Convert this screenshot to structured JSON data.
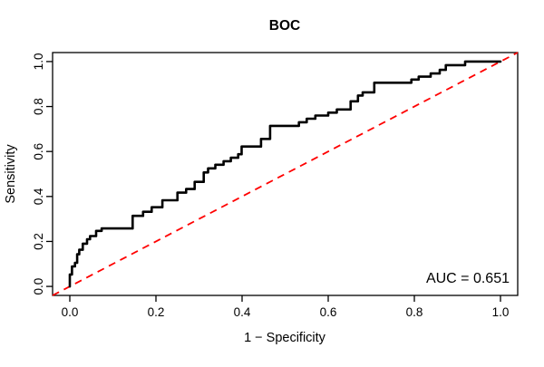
{
  "chart_data": {
    "type": "line",
    "title": "BOC",
    "xlabel": "1 − Specificity",
    "ylabel": "Sensitivity",
    "annotation": "AUC = 0.651",
    "auc_value": 0.651,
    "xlim": [
      -0.04,
      1.04
    ],
    "ylim": [
      -0.04,
      1.04
    ],
    "x_ticks": [
      0.0,
      0.2,
      0.4,
      0.6,
      0.8,
      1.0
    ],
    "y_ticks": [
      0.0,
      0.2,
      0.4,
      0.6,
      0.8,
      1.0
    ],
    "grid": false,
    "legend": "none",
    "colors": {
      "roc_curve": "#000000",
      "reference_line": "#ff0000",
      "box": "#000000"
    },
    "series": [
      {
        "name": "roc-curve",
        "style": "solid-step",
        "x": [
          0,
          0,
          0.005,
          0.005,
          0.012,
          0.012,
          0.017,
          0.017,
          0.022,
          0.022,
          0.03,
          0.03,
          0.04,
          0.04,
          0.047,
          0.047,
          0.061,
          0.061,
          0.074,
          0.074,
          0.146,
          0.146,
          0.17,
          0.17,
          0.19,
          0.19,
          0.215,
          0.215,
          0.25,
          0.25,
          0.27,
          0.27,
          0.29,
          0.29,
          0.311,
          0.311,
          0.321,
          0.321,
          0.338,
          0.338,
          0.357,
          0.357,
          0.374,
          0.374,
          0.391,
          0.391,
          0.399,
          0.399,
          0.444,
          0.444,
          0.465,
          0.465,
          0.532,
          0.532,
          0.55,
          0.55,
          0.57,
          0.57,
          0.6,
          0.6,
          0.62,
          0.62,
          0.652,
          0.652,
          0.669,
          0.669,
          0.68,
          0.68,
          0.707,
          0.707,
          0.793,
          0.793,
          0.81,
          0.81,
          0.838,
          0.838,
          0.859,
          0.859,
          0.873,
          0.873,
          0.918,
          0.918,
          1.0
        ],
        "y": [
          0,
          0.053,
          0.053,
          0.089,
          0.089,
          0.105,
          0.105,
          0.143,
          0.143,
          0.163,
          0.163,
          0.19,
          0.19,
          0.21,
          0.21,
          0.224,
          0.224,
          0.247,
          0.247,
          0.258,
          0.258,
          0.314,
          0.314,
          0.332,
          0.332,
          0.352,
          0.352,
          0.383,
          0.383,
          0.417,
          0.417,
          0.433,
          0.433,
          0.465,
          0.465,
          0.507,
          0.507,
          0.525,
          0.525,
          0.541,
          0.541,
          0.557,
          0.557,
          0.572,
          0.572,
          0.588,
          0.588,
          0.622,
          0.622,
          0.656,
          0.656,
          0.714,
          0.714,
          0.73,
          0.73,
          0.746,
          0.746,
          0.76,
          0.76,
          0.773,
          0.773,
          0.787,
          0.787,
          0.823,
          0.823,
          0.849,
          0.849,
          0.863,
          0.863,
          0.906,
          0.906,
          0.92,
          0.92,
          0.933,
          0.933,
          0.947,
          0.947,
          0.963,
          0.963,
          0.984,
          0.984,
          1.0,
          1.0
        ]
      },
      {
        "name": "chance-diagonal",
        "style": "dashed",
        "x": [
          -0.04,
          1.04
        ],
        "y": [
          -0.04,
          1.04
        ]
      }
    ]
  }
}
